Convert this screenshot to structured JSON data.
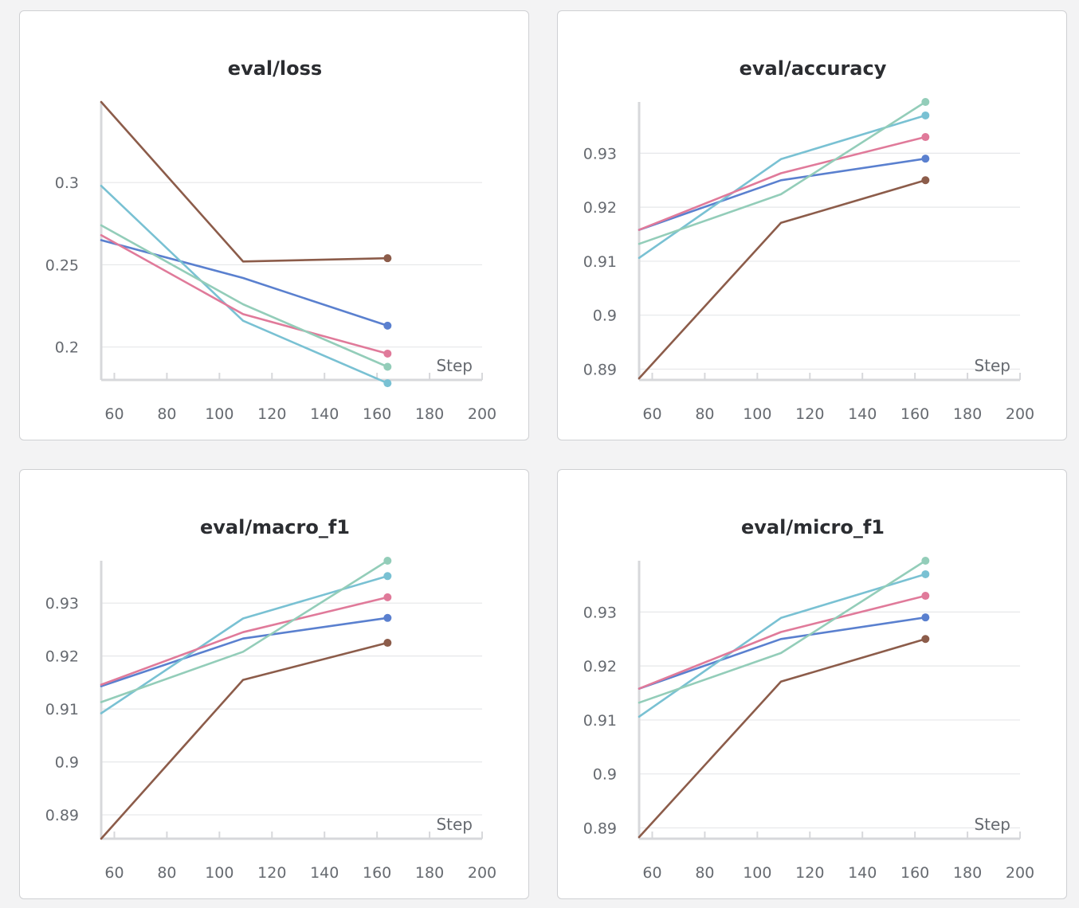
{
  "chart_data": [
    {
      "type": "line",
      "title": "eval/loss",
      "xlabel": "Step",
      "x": [
        55,
        109,
        164
      ],
      "xlim": [
        55,
        200
      ],
      "xticks": [
        60,
        80,
        100,
        120,
        140,
        160,
        180,
        200
      ],
      "ylim": [
        0.18,
        0.349
      ],
      "yticks": [
        0.2,
        0.25,
        0.3
      ],
      "ytick_labels": [
        "0.2",
        "0.25",
        "0.3"
      ],
      "series": [
        {
          "color": "#8c5c4a",
          "values": [
            0.349,
            0.252,
            0.254
          ]
        },
        {
          "color": "#5a80cf",
          "values": [
            0.265,
            0.242,
            0.213
          ]
        },
        {
          "color": "#79c1d3",
          "values": [
            0.298,
            0.216,
            0.178
          ]
        },
        {
          "color": "#e07a9a",
          "values": [
            0.268,
            0.22,
            0.196
          ]
        },
        {
          "color": "#93cdb9",
          "values": [
            0.274,
            0.226,
            0.188
          ]
        }
      ]
    },
    {
      "type": "line",
      "title": "eval/accuracy",
      "xlabel": "Step",
      "x": [
        55,
        109,
        164
      ],
      "xlim": [
        55,
        200
      ],
      "xticks": [
        60,
        80,
        100,
        120,
        140,
        160,
        180,
        200
      ],
      "ylim": [
        0.888,
        0.9395
      ],
      "yticks": [
        0.89,
        0.9,
        0.91,
        0.92,
        0.93
      ],
      "ytick_labels": [
        "0.89",
        "0.9",
        "0.91",
        "0.92",
        "0.93"
      ],
      "series": [
        {
          "color": "#8c5c4a",
          "values": [
            0.8883,
            0.9171,
            0.925
          ]
        },
        {
          "color": "#5a80cf",
          "values": [
            0.9158,
            0.925,
            0.929
          ]
        },
        {
          "color": "#79c1d3",
          "values": [
            0.9106,
            0.9289,
            0.937
          ]
        },
        {
          "color": "#e07a9a",
          "values": [
            0.9158,
            0.9263,
            0.933
          ]
        },
        {
          "color": "#93cdb9",
          "values": [
            0.9132,
            0.9224,
            0.9395
          ]
        }
      ]
    },
    {
      "type": "line",
      "title": "eval/macro_f1",
      "xlabel": "Step",
      "x": [
        55,
        109,
        164
      ],
      "xlim": [
        55,
        200
      ],
      "xticks": [
        60,
        80,
        100,
        120,
        140,
        160,
        180,
        200
      ],
      "ylim": [
        0.8855,
        0.938
      ],
      "yticks": [
        0.89,
        0.9,
        0.91,
        0.92,
        0.93
      ],
      "ytick_labels": [
        "0.89",
        "0.9",
        "0.91",
        "0.92",
        "0.93"
      ],
      "series": [
        {
          "color": "#8c5c4a",
          "values": [
            0.8855,
            0.9155,
            0.9225
          ]
        },
        {
          "color": "#5a80cf",
          "values": [
            0.9143,
            0.9233,
            0.9272
          ]
        },
        {
          "color": "#79c1d3",
          "values": [
            0.9092,
            0.9271,
            0.9351
          ]
        },
        {
          "color": "#e07a9a",
          "values": [
            0.9146,
            0.9245,
            0.9311
          ]
        },
        {
          "color": "#93cdb9",
          "values": [
            0.9113,
            0.9208,
            0.938
          ]
        }
      ]
    },
    {
      "type": "line",
      "title": "eval/micro_f1",
      "xlabel": "Step",
      "x": [
        55,
        109,
        164
      ],
      "xlim": [
        55,
        200
      ],
      "xticks": [
        60,
        80,
        100,
        120,
        140,
        160,
        180,
        200
      ],
      "ylim": [
        0.888,
        0.9395
      ],
      "yticks": [
        0.89,
        0.9,
        0.91,
        0.92,
        0.93
      ],
      "ytick_labels": [
        "0.89",
        "0.9",
        "0.91",
        "0.92",
        "0.93"
      ],
      "series": [
        {
          "color": "#8c5c4a",
          "values": [
            0.8883,
            0.9171,
            0.925
          ]
        },
        {
          "color": "#5a80cf",
          "values": [
            0.9158,
            0.925,
            0.929
          ]
        },
        {
          "color": "#79c1d3",
          "values": [
            0.9106,
            0.9289,
            0.937
          ]
        },
        {
          "color": "#e07a9a",
          "values": [
            0.9158,
            0.9263,
            0.933
          ]
        },
        {
          "color": "#93cdb9",
          "values": [
            0.9132,
            0.9224,
            0.9395
          ]
        }
      ]
    }
  ]
}
